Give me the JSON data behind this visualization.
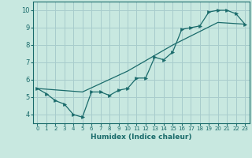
{
  "xlabel": "Humidex (Indice chaleur)",
  "bg_color": "#c8e8e0",
  "grid_color": "#a8cccc",
  "line_color": "#1a6b6b",
  "xlim": [
    -0.5,
    23.5
  ],
  "ylim": [
    3.5,
    10.5
  ],
  "xticks": [
    0,
    1,
    2,
    3,
    4,
    5,
    6,
    7,
    8,
    9,
    10,
    11,
    12,
    13,
    14,
    15,
    16,
    17,
    18,
    19,
    20,
    21,
    22,
    23
  ],
  "yticks": [
    4,
    5,
    6,
    7,
    8,
    9,
    10
  ],
  "zigzag_x": [
    0,
    1,
    2,
    3,
    4,
    5,
    6,
    7,
    8,
    9,
    10,
    11,
    12,
    13,
    14,
    15,
    16,
    17,
    18,
    19,
    20,
    21,
    22,
    23
  ],
  "zigzag_y": [
    5.5,
    5.2,
    4.8,
    4.6,
    4.0,
    3.85,
    5.3,
    5.3,
    5.1,
    5.4,
    5.5,
    6.1,
    6.1,
    7.3,
    7.15,
    7.6,
    8.9,
    9.0,
    9.1,
    9.9,
    10.0,
    10.0,
    9.8,
    9.2
  ],
  "straight_x": [
    0,
    5,
    10,
    15,
    20,
    23
  ],
  "straight_y": [
    5.5,
    5.3,
    6.5,
    8.0,
    9.3,
    9.2
  ]
}
